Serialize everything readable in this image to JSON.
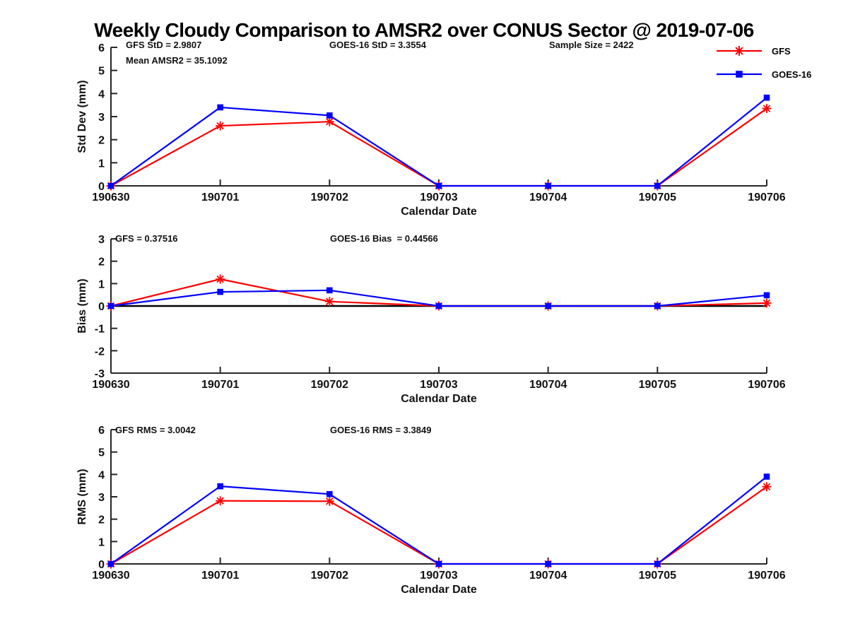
{
  "title": "Weekly Cloudy Comparison to AMSR2 over CONUS Sector @ 2019-07-06",
  "colors": {
    "gfs": "#ff0000",
    "goes16": "#0000ff",
    "axis": "#262626",
    "zero_line": "#000000"
  },
  "legend": {
    "items": [
      {
        "label": "GFS",
        "color": "#ff0000",
        "marker": "asterisk"
      },
      {
        "label": "GOES-16",
        "color": "#0000ff",
        "marker": "square"
      }
    ]
  },
  "chart_data": [
    {
      "type": "line",
      "name": "stddev",
      "title": "",
      "ylabel": "Std Dev (mm)",
      "xlabel": "Calendar Date",
      "ylim": [
        0,
        6
      ],
      "yticks": [
        0,
        1,
        2,
        3,
        4,
        5,
        6
      ],
      "categories": [
        "190630",
        "190701",
        "190702",
        "190703",
        "190704",
        "190705",
        "190706"
      ],
      "series": [
        {
          "name": "GFS",
          "color": "#ff0000",
          "marker": "asterisk",
          "values": [
            0,
            2.6,
            2.78,
            0,
            0,
            0,
            3.35
          ]
        },
        {
          "name": "GOES-16",
          "color": "#0000ff",
          "marker": "square",
          "values": [
            0,
            3.4,
            3.05,
            0,
            0,
            0,
            3.82
          ]
        }
      ],
      "annotations": [
        {
          "text": "GFS StD = 2.9807"
        },
        {
          "text": "Mean AMSR2 = 35.1092"
        },
        {
          "text": "GOES-16 StD = 3.3554"
        },
        {
          "text": "Sample Size = 2422"
        }
      ],
      "zero_line": false
    },
    {
      "type": "line",
      "name": "bias",
      "title": "",
      "ylabel": "Bias (mm)",
      "xlabel": "Calendar Date",
      "ylim": [
        -3,
        3
      ],
      "yticks": [
        -3,
        -2,
        -1,
        0,
        1,
        2,
        3
      ],
      "categories": [
        "190630",
        "190701",
        "190702",
        "190703",
        "190704",
        "190705",
        "190706"
      ],
      "series": [
        {
          "name": "GFS",
          "color": "#ff0000",
          "marker": "asterisk",
          "values": [
            0,
            1.2,
            0.2,
            0,
            0,
            0,
            0.13
          ]
        },
        {
          "name": "GOES-16",
          "color": "#0000ff",
          "marker": "square",
          "values": [
            0,
            0.63,
            0.7,
            0,
            0,
            0,
            0.48
          ]
        }
      ],
      "annotations": [
        {
          "text": "GFS = 0.37516"
        },
        {
          "text": "GOES-16 Bias  = 0.44566"
        }
      ],
      "zero_line": true
    },
    {
      "type": "line",
      "name": "rms",
      "title": "",
      "ylabel": "RMS (mm)",
      "xlabel": "Calendar Date",
      "ylim": [
        0,
        6
      ],
      "yticks": [
        0,
        1,
        2,
        3,
        4,
        5,
        6
      ],
      "categories": [
        "190630",
        "190701",
        "190702",
        "190703",
        "190704",
        "190705",
        "190706"
      ],
      "series": [
        {
          "name": "GFS",
          "color": "#ff0000",
          "marker": "asterisk",
          "values": [
            0,
            2.82,
            2.8,
            0,
            0,
            0,
            3.45
          ]
        },
        {
          "name": "GOES-16",
          "color": "#0000ff",
          "marker": "square",
          "values": [
            0,
            3.47,
            3.12,
            0,
            0,
            0,
            3.9
          ]
        }
      ],
      "annotations": [
        {
          "text": "GFS RMS = 3.0042"
        },
        {
          "text": "GOES-16 RMS = 3.3849"
        }
      ],
      "zero_line": false
    }
  ]
}
